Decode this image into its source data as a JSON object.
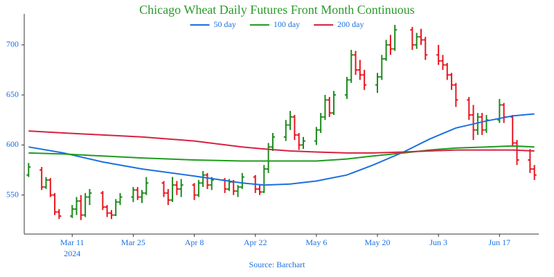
{
  "chart_data": {
    "type": "ohlc",
    "title": "Chicago Wheat Daily Futures Front Month Continuous",
    "source": "Source: Barchart",
    "x_year": "2024",
    "up_color": "#1a8a1a",
    "down_color": "#e8141e",
    "xlim": [
      "2024-02-29",
      "2024-06-26"
    ],
    "xticks": [
      {
        "value": "2024-03-11",
        "label": "Mar 11"
      },
      {
        "value": "2024-03-25",
        "label": "Mar 25"
      },
      {
        "value": "2024-04-08",
        "label": "Apr 8"
      },
      {
        "value": "2024-04-22",
        "label": "Apr 22"
      },
      {
        "value": "2024-05-06",
        "label": "May 6"
      },
      {
        "value": "2024-05-20",
        "label": "May 20"
      },
      {
        "value": "2024-06-03",
        "label": "Jun 3"
      },
      {
        "value": "2024-06-17",
        "label": "Jun 17"
      }
    ],
    "ylim": [
      511,
      731
    ],
    "yticks": [
      550,
      600,
      650,
      700
    ],
    "grid": false,
    "x": [
      "2024-03-01",
      "2024-03-04",
      "2024-03-05",
      "2024-03-06",
      "2024-03-07",
      "2024-03-08",
      "2024-03-11",
      "2024-03-12",
      "2024-03-13",
      "2024-03-14",
      "2024-03-15",
      "2024-03-18",
      "2024-03-19",
      "2024-03-20",
      "2024-03-21",
      "2024-03-22",
      "2024-03-25",
      "2024-03-26",
      "2024-03-27",
      "2024-03-28",
      "2024-04-01",
      "2024-04-02",
      "2024-04-03",
      "2024-04-04",
      "2024-04-05",
      "2024-04-08",
      "2024-04-09",
      "2024-04-10",
      "2024-04-11",
      "2024-04-12",
      "2024-04-15",
      "2024-04-16",
      "2024-04-17",
      "2024-04-18",
      "2024-04-19",
      "2024-04-22",
      "2024-04-23",
      "2024-04-24",
      "2024-04-25",
      "2024-04-26",
      "2024-04-29",
      "2024-04-30",
      "2024-05-01",
      "2024-05-02",
      "2024-05-03",
      "2024-05-06",
      "2024-05-07",
      "2024-05-08",
      "2024-05-09",
      "2024-05-10",
      "2024-05-13",
      "2024-05-14",
      "2024-05-15",
      "2024-05-16",
      "2024-05-17",
      "2024-05-20",
      "2024-05-21",
      "2024-05-22",
      "2024-05-23",
      "2024-05-24",
      "2024-05-28",
      "2024-05-29",
      "2024-05-30",
      "2024-05-31",
      "2024-06-03",
      "2024-06-04",
      "2024-06-05",
      "2024-06-06",
      "2024-06-07",
      "2024-06-10",
      "2024-06-11",
      "2024-06-12",
      "2024-06-13",
      "2024-06-14",
      "2024-06-17",
      "2024-06-18",
      "2024-06-20",
      "2024-06-21",
      "2024-06-24",
      "2024-06-25"
    ],
    "open": [
      570,
      575,
      558,
      565,
      550,
      533,
      529,
      536,
      544,
      530,
      548,
      552,
      538,
      532,
      530,
      543,
      548,
      555,
      548,
      552,
      562,
      552,
      545,
      560,
      556,
      560,
      550,
      562,
      570,
      560,
      565,
      556,
      563,
      554,
      558,
      568,
      556,
      553,
      576,
      598,
      608,
      620,
      628,
      610,
      600,
      604,
      615,
      628,
      645,
      632,
      650,
      665,
      690,
      675,
      670,
      660,
      668,
      686,
      700,
      696,
      715,
      700,
      708,
      705,
      690,
      684,
      680,
      670,
      660,
      645,
      630,
      615,
      628,
      615,
      625,
      640,
      628,
      602,
      585,
      576
    ],
    "high": [
      582,
      578,
      568,
      567,
      552,
      536,
      540,
      548,
      550,
      552,
      556,
      554,
      540,
      535,
      546,
      552,
      558,
      558,
      555,
      568,
      564,
      556,
      568,
      564,
      566,
      562,
      565,
      574,
      572,
      568,
      567,
      566,
      565,
      560,
      572,
      570,
      560,
      580,
      602,
      612,
      625,
      634,
      630,
      612,
      608,
      618,
      632,
      650,
      648,
      654,
      668,
      695,
      694,
      685,
      675,
      672,
      690,
      705,
      710,
      720,
      718,
      712,
      716,
      708,
      700,
      690,
      682,
      672,
      662,
      648,
      640,
      632,
      632,
      630,
      646,
      642,
      630,
      605,
      596,
      580
    ],
    "low": [
      568,
      555,
      556,
      548,
      530,
      526,
      527,
      530,
      525,
      528,
      540,
      535,
      528,
      526,
      529,
      540,
      543,
      545,
      542,
      550,
      548,
      540,
      543,
      550,
      548,
      545,
      548,
      558,
      556,
      555,
      552,
      554,
      550,
      548,
      556,
      552,
      550,
      552,
      572,
      594,
      604,
      615,
      605,
      595,
      596,
      600,
      612,
      625,
      628,
      630,
      646,
      662,
      670,
      665,
      655,
      652,
      665,
      684,
      690,
      694,
      695,
      696,
      700,
      685,
      680,
      675,
      665,
      655,
      638,
      625,
      605,
      610,
      610,
      612,
      622,
      622,
      598,
      580,
      572,
      565
    ],
    "close": [
      578,
      558,
      565,
      550,
      533,
      529,
      536,
      544,
      530,
      548,
      552,
      538,
      532,
      530,
      543,
      548,
      555,
      548,
      552,
      562,
      552,
      545,
      560,
      556,
      560,
      550,
      562,
      570,
      560,
      565,
      556,
      563,
      554,
      558,
      568,
      556,
      553,
      576,
      598,
      608,
      620,
      628,
      610,
      600,
      604,
      615,
      628,
      645,
      632,
      650,
      665,
      690,
      675,
      670,
      660,
      668,
      686,
      700,
      696,
      715,
      700,
      708,
      705,
      690,
      684,
      680,
      670,
      660,
      645,
      630,
      615,
      628,
      615,
      625,
      640,
      628,
      602,
      585,
      576,
      570
    ],
    "series": [
      {
        "name": "50 day",
        "color": "#1a6fdf",
        "x": [
          "2024-03-01",
          "2024-03-09",
          "2024-03-18",
          "2024-03-27",
          "2024-04-08",
          "2024-04-19",
          "2024-04-24",
          "2024-04-30",
          "2024-05-06",
          "2024-05-13",
          "2024-05-19",
          "2024-05-26",
          "2024-06-01",
          "2024-06-07",
          "2024-06-14",
          "2024-06-20",
          "2024-06-25"
        ],
        "values": [
          598,
          592,
          583,
          576,
          569,
          562,
          560,
          561,
          564,
          570,
          580,
          593,
          606,
          617,
          624,
          629,
          631
        ]
      },
      {
        "name": "100 day",
        "color": "#1e9a1e",
        "x": [
          "2024-03-01",
          "2024-03-09",
          "2024-03-18",
          "2024-03-27",
          "2024-04-08",
          "2024-04-19",
          "2024-04-24",
          "2024-04-30",
          "2024-05-06",
          "2024-05-13",
          "2024-05-19",
          "2024-05-26",
          "2024-06-01",
          "2024-06-07",
          "2024-06-14",
          "2024-06-20",
          "2024-06-25"
        ],
        "values": [
          592,
          591,
          589,
          587,
          585,
          584,
          584,
          584,
          584,
          586,
          589,
          592,
          595,
          597,
          598,
          599,
          598
        ]
      },
      {
        "name": "200 day",
        "color": "#d62040",
        "x": [
          "2024-03-01",
          "2024-03-09",
          "2024-03-18",
          "2024-03-27",
          "2024-04-08",
          "2024-04-19",
          "2024-04-24",
          "2024-04-30",
          "2024-05-06",
          "2024-05-13",
          "2024-05-19",
          "2024-05-26",
          "2024-06-01",
          "2024-06-07",
          "2024-06-14",
          "2024-06-20",
          "2024-06-25"
        ],
        "values": [
          614,
          612,
          610,
          608,
          604,
          598,
          596,
          594,
          593,
          592,
          592,
          593,
          594,
          595,
          595,
          595,
          594
        ]
      }
    ]
  }
}
